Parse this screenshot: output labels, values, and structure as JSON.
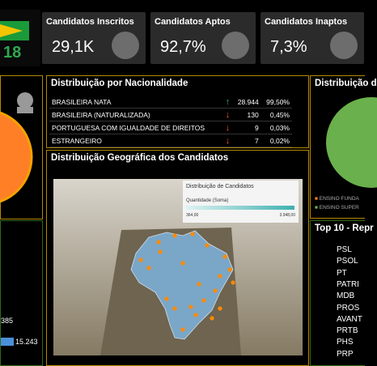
{
  "header": {
    "logo_text": "18"
  },
  "kpis": [
    {
      "title": "Candidatos Inscritos",
      "value": "29,1K"
    },
    {
      "title": "Candidatos Aptos",
      "value": "92,7%"
    },
    {
      "title": "Candidatos Inaptos",
      "value": "7,3%"
    }
  ],
  "left_panel": {
    "value_a": "385",
    "value_b": "15.243"
  },
  "nationality": {
    "title": "Distribuição por Nacionalidade",
    "rows": [
      [
        "BRASILEIRA NATA",
        "up",
        "28.944",
        "99,50%"
      ],
      [
        "BRASILEIRA (NATURALIZADA)",
        "down",
        "130",
        "0,45%"
      ],
      [
        "PORTUGUESA COM IGUALDADE DE DIREITOS",
        "down",
        "9",
        "0,03%"
      ],
      [
        "ESTRANGEIRO",
        "down",
        "7",
        "0,02%"
      ]
    ]
  },
  "map": {
    "title": "Distribuição Geográfica dos Candidatos",
    "legend_title": "Distribuição de Candidatos",
    "legend_measure": "Quantidade (Soma)",
    "legend_min": "364,00",
    "legend_max": "3.948,00"
  },
  "education": {
    "title": "Distribuição d",
    "legend": [
      "ENSINO FUNDA",
      "ENSINO SUPER"
    ]
  },
  "top10": {
    "title": "Top 10 - Repr",
    "parties": [
      "PSL",
      "PSOL",
      "PT",
      "PATRI",
      "MDB",
      "PROS",
      "AVANT",
      "PRTB",
      "PHS",
      "PRP"
    ]
  }
}
